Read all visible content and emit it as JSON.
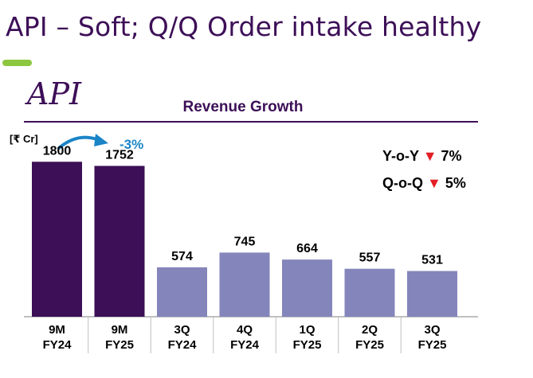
{
  "slide": {
    "title": "API – Soft; Q/Q Order intake healthy",
    "logo_text": "API",
    "accent_color": "#8dc63f",
    "brand_color": "#3d0f57"
  },
  "chart_data": {
    "type": "bar",
    "title": "Revenue Growth",
    "unit_label": "[₹ Cr]",
    "categories": [
      [
        "9M",
        "FY24"
      ],
      [
        "9M",
        "FY25"
      ],
      [
        "3Q",
        "FY24"
      ],
      [
        "4Q",
        "FY24"
      ],
      [
        "1Q",
        "FY25"
      ],
      [
        "2Q",
        "FY25"
      ],
      [
        "3Q",
        "FY25"
      ]
    ],
    "values": [
      1800,
      1752,
      574,
      745,
      664,
      557,
      531
    ],
    "bar_colors": [
      "#3d0f57",
      "#3d0f57",
      "#8485bb",
      "#8485bb",
      "#8485bb",
      "#8485bb",
      "#8485bb"
    ],
    "ylim": [
      0,
      2200
    ],
    "grid": false,
    "annotation": {
      "text": "-3%",
      "color": "#1a84c7"
    },
    "stats": [
      {
        "label": "Y-o-Y",
        "indicator": "▼",
        "value": "7%"
      },
      {
        "label": "Q-o-Q",
        "indicator": "▼",
        "value": "5%"
      }
    ]
  }
}
